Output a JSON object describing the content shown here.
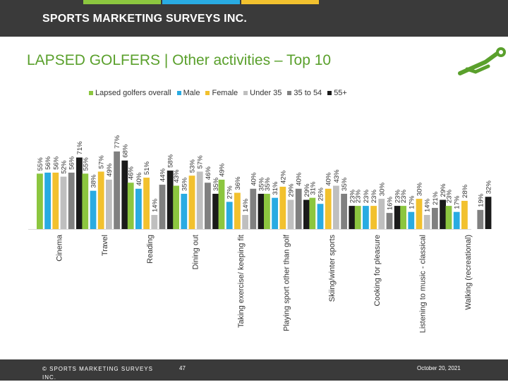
{
  "header": {
    "brand": "SPORTS MARKETING SURVEYS INC."
  },
  "page_title": "LAPSED GOLFERS  |  Other activities – Top 10",
  "colors": {
    "accent": "#5aa02c",
    "bar": "#3a3a3a",
    "stripe_green": "#8cc63f",
    "stripe_blue": "#29abe2",
    "stripe_yellow": "#f2c12e"
  },
  "logo_icon": "golfer-silhouette-icon",
  "chart_data": {
    "type": "bar",
    "title": "",
    "xlabel": "",
    "ylabel": "",
    "ylim": [
      0,
      80
    ],
    "grid": false,
    "legend_position": "top",
    "categories": [
      "Cinema",
      "Travel",
      "Reading",
      "Dining out",
      "Taking exercise/ keeping fit",
      "Playing sport other than golf",
      "Skiing/winter sports",
      "Cooking for pleasure",
      "Listening to music - classical",
      "Walking (recreational)"
    ],
    "series": [
      {
        "name": "Lapsed golfers overall",
        "color": "#8cc63f",
        "values": [
          55,
          55,
          46,
          43,
          49,
          35,
          31,
          23,
          23,
          23
        ]
      },
      {
        "name": "Male",
        "color": "#29abe2",
        "values": [
          56,
          38,
          40,
          35,
          27,
          31,
          25,
          23,
          17,
          17
        ]
      },
      {
        "name": "Female",
        "color": "#f2c12e",
        "values": [
          56,
          57,
          51,
          53,
          36,
          42,
          40,
          23,
          30,
          28
        ]
      },
      {
        "name": "Under 35",
        "color": "#bfbfbf",
        "values": [
          52,
          49,
          14,
          57,
          14,
          29,
          43,
          30,
          14,
          null
        ]
      },
      {
        "name": "35 to 54",
        "color": "#808080",
        "values": [
          56,
          77,
          44,
          46,
          40,
          40,
          35,
          16,
          21,
          19
        ]
      },
      {
        "name": "55+",
        "color": "#1a1a1a",
        "values": [
          71,
          68,
          58,
          35,
          35,
          29,
          23,
          23,
          29,
          32
        ]
      }
    ]
  },
  "footer": {
    "copyright": "© SPORTS MARKETING SURVEYS INC.",
    "page_number": "47",
    "date": "October 20, 2021"
  }
}
